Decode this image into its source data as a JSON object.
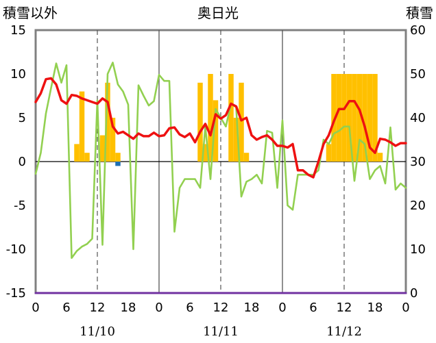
{
  "chart_data": {
    "type": "bar+line",
    "title": "奥日光",
    "left_axis_label": "積雪以外",
    "right_axis_label": "積雪",
    "y_left": {
      "min": -15,
      "max": 15,
      "ticks": [
        "-15",
        "-10",
        "-5",
        "0",
        "5",
        "10",
        "15"
      ]
    },
    "y_right": {
      "min": 0,
      "max": 60,
      "ticks": [
        "0",
        "10",
        "20",
        "30",
        "40",
        "50",
        "60"
      ]
    },
    "x": {
      "min": 0,
      "max": 72,
      "unit": "hours",
      "tick_labels": [
        "0",
        "6",
        "12",
        "18",
        "0",
        "6",
        "12",
        "18",
        "0",
        "6",
        "12",
        "18",
        "0"
      ]
    },
    "date_labels": [
      "11/10",
      "11/11",
      "11/12"
    ],
    "grid": {
      "day_lines": "solid",
      "noon_lines": "dashed"
    },
    "colors": {
      "temperature": "#ee1111",
      "green_series": "#92d050",
      "snow_bars": "#ffc000",
      "precip_bar": "#1f6fb3",
      "snow_depth_line": "#7030a0",
      "frame": "#808080"
    },
    "series": [
      {
        "kind": "bar-left",
        "color": "#ffc000",
        "values": [
          [
            8,
            2
          ],
          [
            9,
            8
          ],
          [
            10,
            1
          ],
          [
            13,
            3
          ],
          [
            14,
            9
          ],
          [
            15,
            5
          ],
          [
            16,
            1
          ],
          [
            32,
            9
          ],
          [
            33,
            2
          ],
          [
            34,
            10
          ],
          [
            35,
            7
          ],
          [
            38,
            10
          ],
          [
            39,
            5
          ],
          [
            40,
            9
          ],
          [
            41,
            1
          ],
          [
            57,
            2
          ],
          [
            58,
            10
          ],
          [
            59,
            10
          ],
          [
            60,
            10
          ],
          [
            61,
            10
          ],
          [
            62,
            10
          ],
          [
            63,
            10
          ],
          [
            64,
            10
          ],
          [
            65,
            10
          ],
          [
            66,
            10
          ],
          [
            67,
            1
          ]
        ]
      },
      {
        "kind": "bar-left",
        "color": "#1f6fb3",
        "values": [
          [
            16,
            -0.5
          ]
        ]
      },
      {
        "kind": "line-left",
        "color": "#92d050",
        "values": [
          [
            0,
            -1.4
          ],
          [
            1,
            1
          ],
          [
            2,
            5.5
          ],
          [
            3,
            8.4
          ],
          [
            4,
            11.2
          ],
          [
            5,
            9
          ],
          [
            6,
            11
          ],
          [
            7,
            -11
          ],
          [
            8,
            -10.2
          ],
          [
            9,
            -9.7
          ],
          [
            10,
            -9.4
          ],
          [
            11,
            -8.8
          ],
          [
            12,
            7
          ],
          [
            13,
            -9.5
          ],
          [
            14,
            10
          ],
          [
            15,
            11.3
          ],
          [
            16,
            8.8
          ],
          [
            17,
            8
          ],
          [
            18,
            6.5
          ],
          [
            19,
            -10
          ],
          [
            20,
            8.7
          ],
          [
            21,
            7.5
          ],
          [
            22,
            6.4
          ],
          [
            23,
            6.9
          ],
          [
            24,
            9.9
          ],
          [
            25,
            9.2
          ],
          [
            26,
            9.2
          ],
          [
            27,
            -8
          ],
          [
            28,
            -3
          ],
          [
            29,
            -2
          ],
          [
            30,
            -2
          ],
          [
            31,
            -2
          ],
          [
            32,
            -3
          ],
          [
            33,
            4
          ],
          [
            34,
            -2
          ],
          [
            35,
            6
          ],
          [
            36,
            5
          ],
          [
            37,
            4
          ],
          [
            38,
            6.6
          ],
          [
            39,
            6.2
          ],
          [
            40,
            -4
          ],
          [
            41,
            -2.3
          ],
          [
            42,
            -2
          ],
          [
            43,
            -1.5
          ],
          [
            44,
            -2.5
          ],
          [
            45,
            3.5
          ],
          [
            46,
            3.3
          ],
          [
            47,
            -3
          ],
          [
            48,
            4.7
          ],
          [
            49,
            -5
          ],
          [
            50,
            -5.5
          ],
          [
            51,
            -1.5
          ],
          [
            52,
            -1.5
          ],
          [
            53,
            -1.5
          ],
          [
            54,
            -1.5
          ],
          [
            55,
            -1
          ],
          [
            56,
            2.5
          ],
          [
            57,
            2
          ],
          [
            58,
            3.2
          ],
          [
            59,
            3.5
          ],
          [
            60,
            4
          ],
          [
            61,
            4
          ],
          [
            62,
            -2.2
          ],
          [
            63,
            2.5
          ],
          [
            64,
            2
          ],
          [
            65,
            -2
          ],
          [
            66,
            -1
          ],
          [
            67,
            -0.5
          ],
          [
            68,
            -2.5
          ],
          [
            69,
            3.9
          ],
          [
            70,
            -3.2
          ],
          [
            71,
            -2.5
          ],
          [
            72,
            -3
          ]
        ]
      },
      {
        "kind": "line-left",
        "color": "#ee1111",
        "values": [
          [
            0,
            6.8
          ],
          [
            1,
            7.8
          ],
          [
            2,
            9.4
          ],
          [
            3,
            9.5
          ],
          [
            4,
            8.8
          ],
          [
            5,
            7
          ],
          [
            6,
            6.6
          ],
          [
            7,
            7.6
          ],
          [
            8,
            7.5
          ],
          [
            9,
            7.2
          ],
          [
            10,
            7
          ],
          [
            11,
            6.8
          ],
          [
            12,
            6.6
          ],
          [
            13,
            7.2
          ],
          [
            14,
            6.8
          ],
          [
            15,
            4
          ],
          [
            16,
            3.2
          ],
          [
            17,
            3.4
          ],
          [
            18,
            3
          ],
          [
            19,
            2.6
          ],
          [
            20,
            3.2
          ],
          [
            21,
            2.9
          ],
          [
            22,
            2.9
          ],
          [
            23,
            3.3
          ],
          [
            24,
            2.9
          ],
          [
            25,
            3
          ],
          [
            26,
            3.8
          ],
          [
            27,
            3.9
          ],
          [
            28,
            3.1
          ],
          [
            29,
            2.8
          ],
          [
            30,
            3.2
          ],
          [
            31,
            2.2
          ],
          [
            32,
            3.4
          ],
          [
            33,
            4.3
          ],
          [
            34,
            3
          ],
          [
            35,
            5.4
          ],
          [
            36,
            4.9
          ],
          [
            37,
            5.3
          ],
          [
            38,
            6.6
          ],
          [
            39,
            6.3
          ],
          [
            40,
            4.7
          ],
          [
            41,
            5
          ],
          [
            42,
            3
          ],
          [
            43,
            2.5
          ],
          [
            44,
            2.8
          ],
          [
            45,
            3
          ],
          [
            46,
            2.5
          ],
          [
            47,
            1.8
          ],
          [
            48,
            1.8
          ],
          [
            49,
            1.6
          ],
          [
            50,
            2
          ],
          [
            51,
            -1
          ],
          [
            52,
            -1
          ],
          [
            53,
            -1.5
          ],
          [
            54,
            -1.8
          ],
          [
            55,
            0
          ],
          [
            56,
            2
          ],
          [
            57,
            3
          ],
          [
            58,
            4.6
          ],
          [
            59,
            6
          ],
          [
            60,
            6
          ],
          [
            61,
            6.9
          ],
          [
            62,
            6.9
          ],
          [
            63,
            5.9
          ],
          [
            64,
            4
          ],
          [
            65,
            1.6
          ],
          [
            66,
            1
          ],
          [
            67,
            2.6
          ],
          [
            68,
            2.5
          ],
          [
            69,
            2.2
          ],
          [
            70,
            1.8
          ],
          [
            71,
            2.1
          ],
          [
            72,
            2.1
          ]
        ]
      },
      {
        "kind": "line-right",
        "color": "#7030a0",
        "values": [
          [
            0,
            0
          ],
          [
            72,
            0
          ]
        ]
      }
    ]
  }
}
